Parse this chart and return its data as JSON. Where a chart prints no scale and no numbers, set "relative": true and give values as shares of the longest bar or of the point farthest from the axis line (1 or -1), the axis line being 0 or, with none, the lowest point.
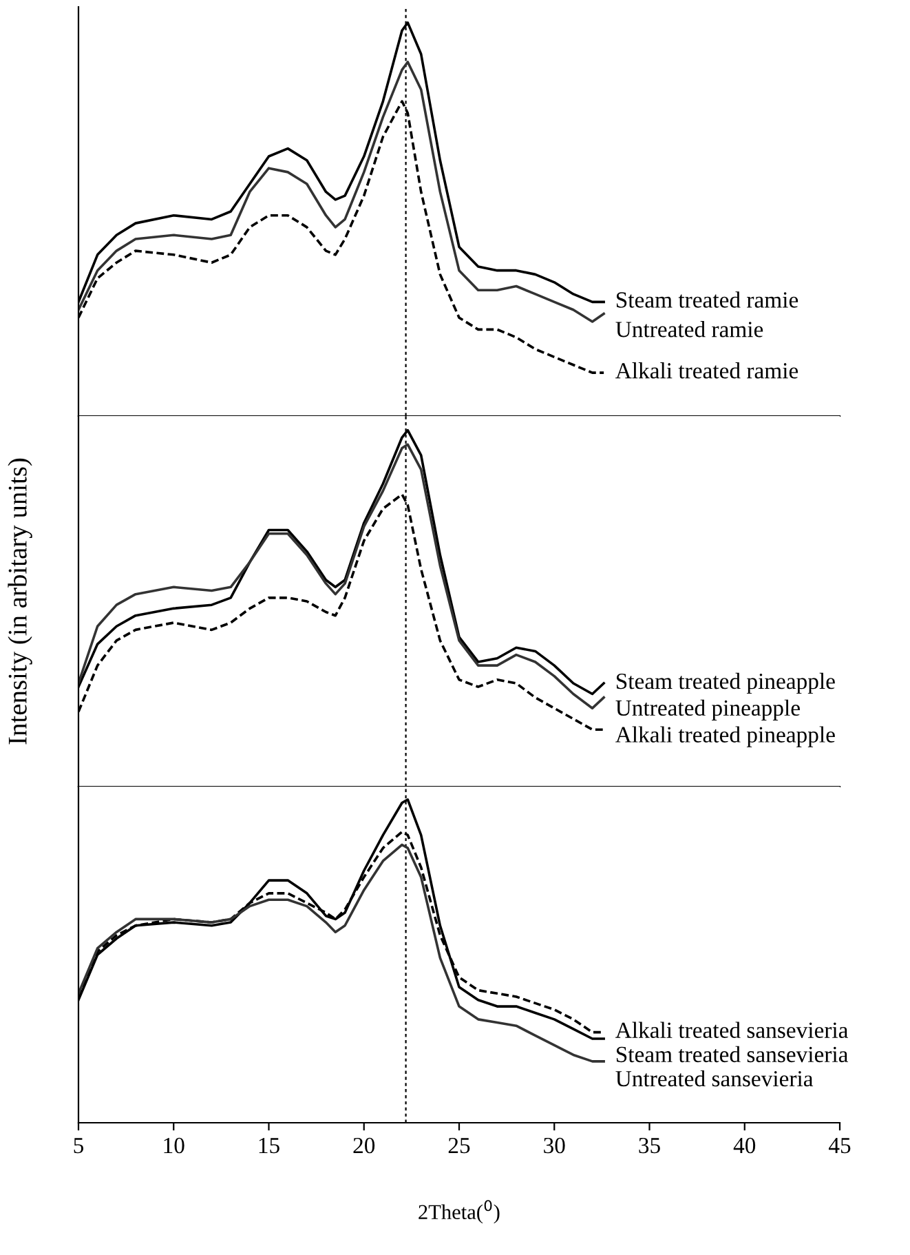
{
  "chart_data": [
    {
      "type": "line",
      "relative": true,
      "xlim": [
        5,
        45
      ],
      "xticks": [
        5,
        10,
        15,
        20,
        25,
        30,
        35,
        40,
        45
      ],
      "tick_labels": false,
      "grid": false,
      "legend": false,
      "x": [
        5,
        6,
        7,
        8,
        10,
        12,
        13,
        14,
        15,
        16,
        17,
        18,
        18.5,
        19,
        20,
        21,
        22,
        22.3,
        23,
        24,
        25,
        26,
        27,
        28,
        29,
        30,
        31,
        32,
        32.6
      ],
      "ref_lines": [
        {
          "axis": "x",
          "value": 22.2,
          "color": "#000000",
          "line_style": "dotted"
        }
      ],
      "series": [
        {
          "name": "Steam treated ramie",
          "color": "#000000",
          "line_style": "solid",
          "values": [
            0.29,
            0.41,
            0.46,
            0.49,
            0.51,
            0.5,
            0.52,
            0.59,
            0.66,
            0.68,
            0.65,
            0.57,
            0.55,
            0.56,
            0.66,
            0.8,
            0.98,
            1.0,
            0.92,
            0.65,
            0.43,
            0.38,
            0.37,
            0.37,
            0.36,
            0.34,
            0.31,
            0.29,
            0.29
          ]
        },
        {
          "name": "Untreated ramie",
          "color": "#333333",
          "line_style": "solid",
          "values": [
            0.27,
            0.37,
            0.42,
            0.45,
            0.46,
            0.45,
            0.46,
            0.57,
            0.63,
            0.62,
            0.59,
            0.51,
            0.48,
            0.5,
            0.62,
            0.76,
            0.88,
            0.9,
            0.83,
            0.57,
            0.37,
            0.32,
            0.32,
            0.33,
            0.31,
            0.29,
            0.27,
            0.24,
            0.26
          ]
        },
        {
          "name": "Alkali treated ramie",
          "color": "#000000",
          "line_style": "dashed",
          "values": [
            0.25,
            0.35,
            0.39,
            0.42,
            0.41,
            0.39,
            0.41,
            0.48,
            0.51,
            0.51,
            0.48,
            0.42,
            0.41,
            0.45,
            0.56,
            0.71,
            0.8,
            0.77,
            0.57,
            0.36,
            0.25,
            0.22,
            0.22,
            0.2,
            0.17,
            0.15,
            0.13,
            0.11,
            0.11
          ]
        }
      ]
    },
    {
      "type": "line",
      "relative": true,
      "xlim": [
        5,
        45
      ],
      "xticks": [
        5,
        10,
        15,
        20,
        25,
        30,
        35,
        40,
        45
      ],
      "tick_labels": false,
      "grid": false,
      "legend": false,
      "ylabel": "Intensity (in arbitary units)",
      "x": [
        5,
        6,
        7,
        8,
        10,
        12,
        13,
        14,
        15,
        16,
        17,
        18,
        18.5,
        19,
        20,
        21,
        22,
        22.3,
        23,
        24,
        25,
        26,
        27,
        28,
        29,
        30,
        31,
        32,
        32.6
      ],
      "ref_lines": [
        {
          "axis": "x",
          "value": 22.2,
          "color": "#000000",
          "line_style": "dotted"
        }
      ],
      "series": [
        {
          "name": "Steam treated pineapple",
          "color": "#000000",
          "line_style": "solid",
          "values": [
            0.28,
            0.4,
            0.45,
            0.48,
            0.5,
            0.51,
            0.53,
            0.63,
            0.72,
            0.72,
            0.66,
            0.58,
            0.56,
            0.58,
            0.74,
            0.85,
            0.98,
            1.0,
            0.93,
            0.65,
            0.42,
            0.35,
            0.36,
            0.39,
            0.38,
            0.34,
            0.29,
            0.26,
            0.29
          ]
        },
        {
          "name": "Untreated pineapple",
          "color": "#333333",
          "line_style": "solid",
          "values": [
            0.29,
            0.45,
            0.51,
            0.54,
            0.56,
            0.55,
            0.56,
            0.63,
            0.71,
            0.71,
            0.65,
            0.57,
            0.54,
            0.57,
            0.73,
            0.83,
            0.95,
            0.96,
            0.89,
            0.62,
            0.41,
            0.34,
            0.34,
            0.37,
            0.35,
            0.31,
            0.26,
            0.22,
            0.25
          ]
        },
        {
          "name": "Alkali treated pineapple",
          "color": "#000000",
          "line_style": "dashed",
          "values": [
            0.21,
            0.34,
            0.41,
            0.44,
            0.46,
            0.44,
            0.46,
            0.5,
            0.53,
            0.53,
            0.52,
            0.49,
            0.48,
            0.53,
            0.69,
            0.78,
            0.82,
            0.79,
            0.61,
            0.41,
            0.3,
            0.28,
            0.3,
            0.29,
            0.25,
            0.22,
            0.19,
            0.16,
            0.16
          ]
        }
      ]
    },
    {
      "type": "line",
      "relative": true,
      "xlim": [
        5,
        45
      ],
      "xticks": [
        5,
        10,
        15,
        20,
        25,
        30,
        35,
        40,
        45
      ],
      "grid": false,
      "legend": false,
      "xlabel": "2Theta($^{0}$)",
      "x": [
        5,
        6,
        7,
        8,
        10,
        12,
        13,
        14,
        15,
        16,
        17,
        18,
        18.5,
        19,
        20,
        21,
        22,
        22.3,
        23,
        24,
        25,
        26,
        27,
        28,
        29,
        30,
        31,
        32,
        32.6
      ],
      "ref_lines": [
        {
          "axis": "x",
          "value": 22.2,
          "color": "#000000",
          "line_style": "dotted"
        }
      ],
      "series": [
        {
          "name": "Alkali treated sansevieria",
          "color": "#000000",
          "line_style": "dashed",
          "values": [
            0.39,
            0.53,
            0.58,
            0.61,
            0.63,
            0.62,
            0.63,
            0.68,
            0.71,
            0.71,
            0.68,
            0.65,
            0.63,
            0.66,
            0.76,
            0.85,
            0.9,
            0.89,
            0.79,
            0.58,
            0.45,
            0.41,
            0.4,
            0.39,
            0.37,
            0.35,
            0.32,
            0.28,
            0.28
          ]
        },
        {
          "name": "Steam treated sansevieria",
          "color": "#000000",
          "line_style": "solid",
          "values": [
            0.38,
            0.52,
            0.57,
            0.61,
            0.62,
            0.61,
            0.62,
            0.68,
            0.75,
            0.75,
            0.71,
            0.64,
            0.63,
            0.65,
            0.78,
            0.89,
            0.99,
            1.0,
            0.89,
            0.61,
            0.42,
            0.38,
            0.36,
            0.36,
            0.34,
            0.32,
            0.29,
            0.26,
            0.26
          ]
        },
        {
          "name": "Untreated sansevieria",
          "color": "#333333",
          "line_style": "solid",
          "values": [
            0.4,
            0.54,
            0.59,
            0.63,
            0.63,
            0.62,
            0.63,
            0.67,
            0.69,
            0.69,
            0.67,
            0.62,
            0.59,
            0.61,
            0.72,
            0.81,
            0.86,
            0.85,
            0.76,
            0.51,
            0.36,
            0.32,
            0.31,
            0.3,
            0.27,
            0.24,
            0.21,
            0.19,
            0.19
          ]
        }
      ]
    }
  ]
}
